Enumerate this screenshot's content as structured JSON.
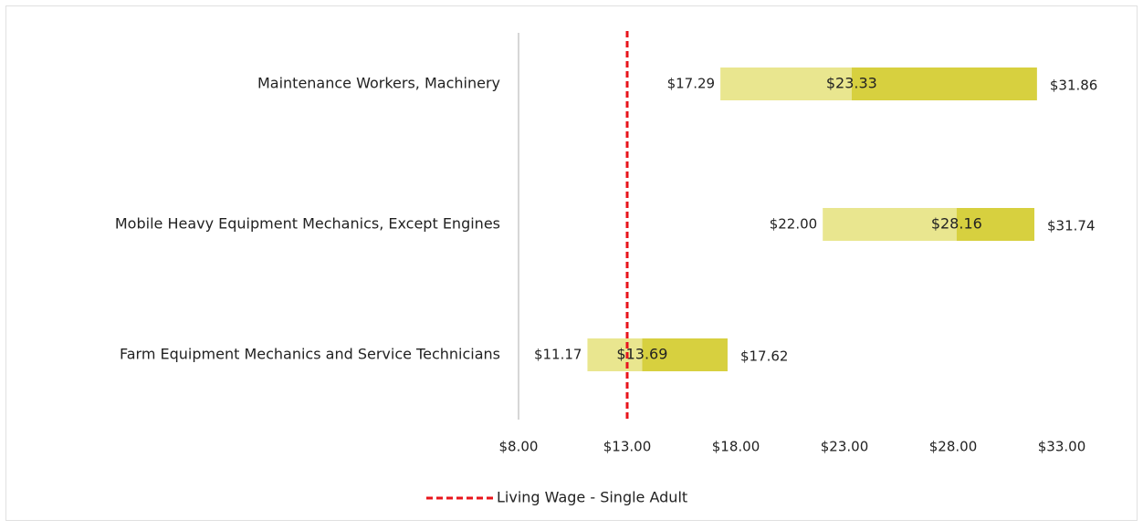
{
  "chart_data": {
    "type": "floating-bar",
    "categories": [
      "Maintenance Workers, Machinery",
      "Mobile Heavy Equipment Mechanics, Except Engines",
      "Farm Equipment Mechanics and Service Technicians"
    ],
    "low": [
      17.29,
      22.0,
      11.17
    ],
    "low_labels": [
      "$17.29",
      "$22.00",
      "$11.17"
    ],
    "median": [
      23.33,
      28.16,
      13.69
    ],
    "median_labels": [
      "$23.33",
      "$28.16",
      "$13.69"
    ],
    "high": [
      31.86,
      31.74,
      17.62
    ],
    "high_labels": [
      "$31.86",
      "$31.74",
      "$17.62"
    ],
    "low_color": "#e9e68f",
    "high_color": "#d7d03f",
    "xlim": [
      8,
      33
    ],
    "xticks": [
      {
        "value": 8,
        "label": "$8.00"
      },
      {
        "value": 13,
        "label": "$13.00"
      },
      {
        "value": 18,
        "label": "$18.00"
      },
      {
        "value": 23,
        "label": "$23.00"
      },
      {
        "value": 28,
        "label": "$28.00"
      },
      {
        "value": 33,
        "label": "$33.00"
      }
    ],
    "reference": {
      "name": "Living Wage - Single Adult",
      "value": 13,
      "color": "#e8141b"
    }
  }
}
